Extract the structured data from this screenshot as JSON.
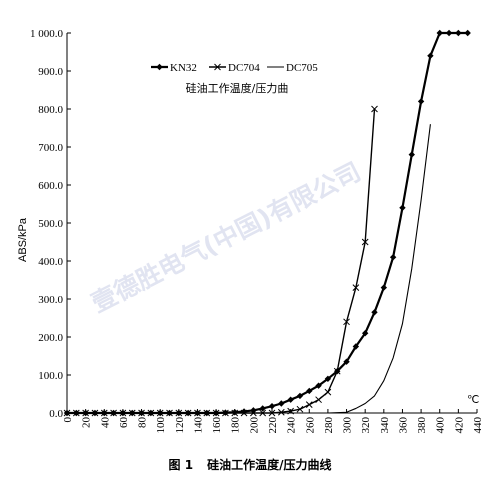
{
  "chart_data": {
    "type": "line",
    "subtitle": "硅油工作温度/压力曲",
    "caption_number": "图 1",
    "caption_title": "硅油工作温度/压力曲线",
    "ylabel": "ABS/kPa",
    "xunit": "℃",
    "watermark": "壹德胜电气(中国)有限公司",
    "xlim": [
      0,
      440
    ],
    "ylim": [
      0,
      1000
    ],
    "x_ticks": [
      0,
      20,
      40,
      60,
      80,
      100,
      120,
      140,
      160,
      180,
      200,
      220,
      240,
      260,
      280,
      300,
      320,
      340,
      360,
      380,
      400,
      420,
      440
    ],
    "y_ticks": [
      {
        "value": 0,
        "label": "0.0"
      },
      {
        "value": 100,
        "label": "100.0"
      },
      {
        "value": 200,
        "label": "200.0"
      },
      {
        "value": 300,
        "label": "300.0"
      },
      {
        "value": 400,
        "label": "400.0"
      },
      {
        "value": 500,
        "label": "500.0"
      },
      {
        "value": 600,
        "label": "600.0"
      },
      {
        "value": 700,
        "label": "700.0"
      },
      {
        "value": 800,
        "label": "800.0"
      },
      {
        "value": 900,
        "label": "900.0"
      },
      {
        "value": 1000,
        "label": "1 000.0"
      }
    ],
    "series": [
      {
        "name": "KN32",
        "marker": "diamond",
        "x": [
          0,
          10,
          20,
          30,
          40,
          50,
          60,
          70,
          80,
          90,
          100,
          110,
          120,
          130,
          140,
          150,
          160,
          170,
          180,
          190,
          200,
          210,
          220,
          230,
          240,
          250,
          260,
          270,
          280,
          290,
          300,
          310,
          320,
          330,
          340,
          350,
          360,
          370,
          380,
          390,
          400,
          410,
          420,
          430
        ],
        "y": [
          0,
          0,
          0,
          0,
          0,
          0,
          0,
          0,
          0,
          0,
          0,
          0,
          0,
          0,
          0,
          0,
          0,
          1,
          2,
          4,
          7,
          12,
          18,
          25,
          35,
          45,
          58,
          72,
          90,
          110,
          135,
          175,
          210,
          265,
          330,
          410,
          540,
          680,
          820,
          940,
          1000,
          1000,
          1000,
          1000
        ]
      },
      {
        "name": "DC704",
        "marker": "x",
        "x": [
          0,
          10,
          20,
          30,
          40,
          50,
          60,
          70,
          80,
          90,
          100,
          110,
          120,
          130,
          140,
          150,
          160,
          170,
          180,
          190,
          200,
          210,
          220,
          230,
          240,
          250,
          260,
          270,
          280,
          290,
          300,
          310,
          320,
          330
        ],
        "y": [
          0,
          0,
          0,
          0,
          0,
          0,
          0,
          0,
          0,
          0,
          0,
          0,
          0,
          0,
          0,
          0,
          0,
          0,
          0,
          0,
          0,
          0,
          0,
          2,
          5,
          10,
          22,
          35,
          55,
          110,
          240,
          330,
          450,
          800
        ]
      },
      {
        "name": "DC705",
        "marker": "none",
        "x": [
          230,
          260,
          280,
          300,
          310,
          320,
          330,
          340,
          350,
          360,
          370,
          380,
          390
        ],
        "y": [
          0,
          0,
          0,
          2,
          12,
          25,
          45,
          85,
          145,
          235,
          380,
          560,
          760
        ]
      }
    ]
  }
}
